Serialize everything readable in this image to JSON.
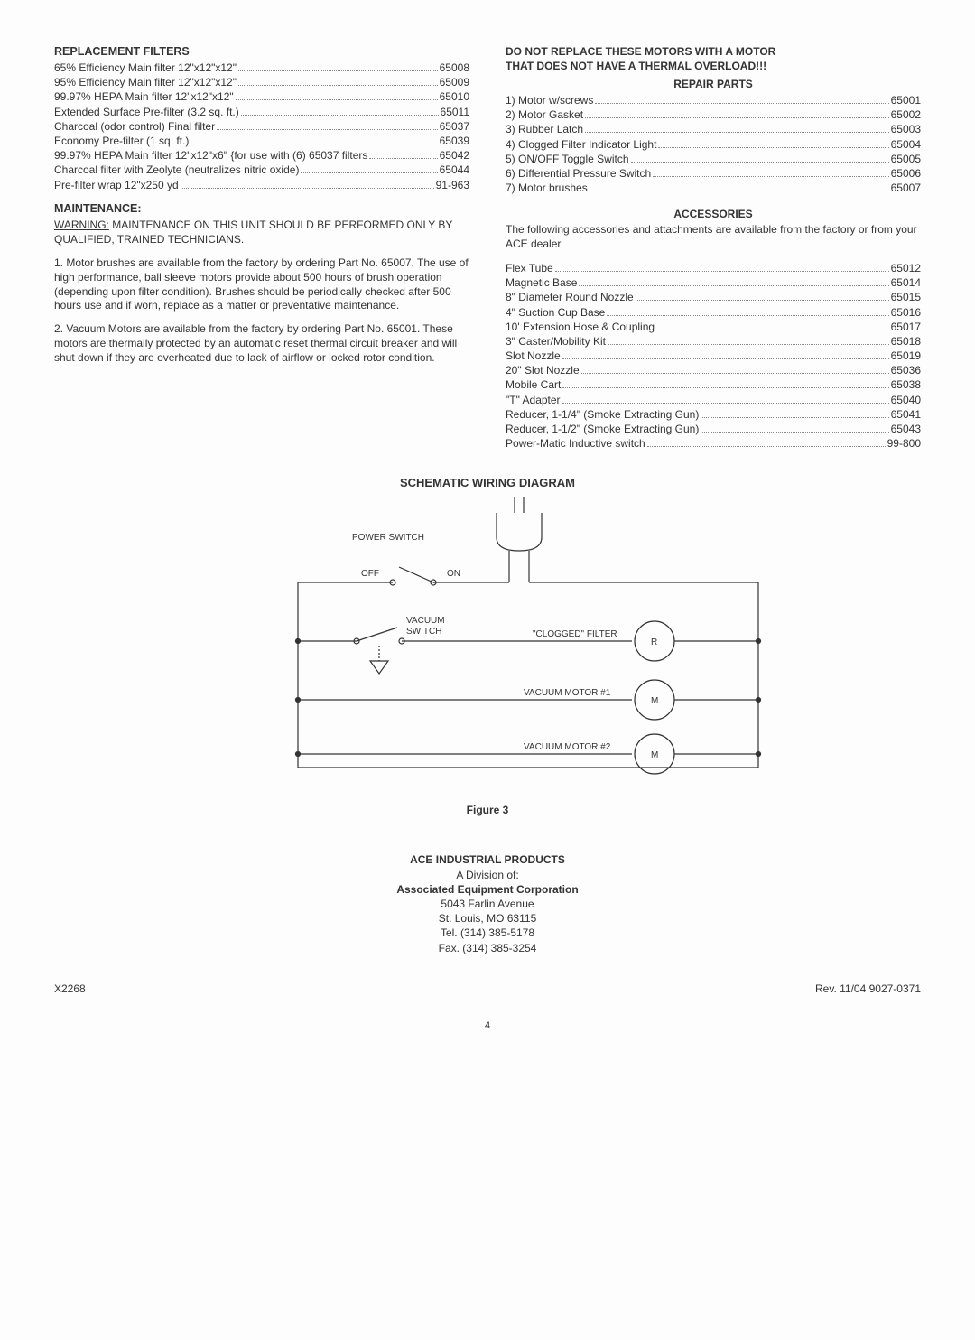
{
  "left": {
    "filtersTitle": "REPLACEMENT FILTERS",
    "filters": [
      {
        "label": "65% Efficiency Main filter 12\"x12\"x12\"",
        "num": "65008"
      },
      {
        "label": "95% Efficiency Main filter 12\"x12\"x12\"",
        "num": "65009"
      },
      {
        "label": "99.97% HEPA Main filter 12\"x12\"x12\"",
        "num": "65010"
      },
      {
        "label": "Extended Surface Pre-filter (3.2 sq. ft.)",
        "num": "65011"
      },
      {
        "label": "Charcoal (odor control) Final filter",
        "num": "65037"
      },
      {
        "label": "Economy Pre-filter (1 sq. ft.)",
        "num": "65039"
      },
      {
        "label": "99.97% HEPA Main filter 12\"x12\"x6\" {for use with (6) 65037 filters",
        "num": "65042"
      },
      {
        "label": "Charcoal filter with Zeolyte (neutralizes nitric oxide)",
        "num": "65044"
      },
      {
        "label": "Pre-filter wrap 12\"x250 yd",
        "num": "91-963"
      }
    ],
    "maintTitle": "MAINTENANCE:",
    "warningLabel": "WARNING:",
    "warningText": " MAINTENANCE ON THIS UNIT SHOULD BE PERFORMED ONLY BY QUALIFIED, TRAINED TECHNICIANS.",
    "p1": "1.    Motor brushes are available from the factory by ordering Part No. 65007.  The use of high performance, ball sleeve motors provide about 500 hours of brush operation (depending upon filter condition). Brushes should be periodically checked after 500 hours use and if worn, replace as a matter or preventative maintenance.",
    "p2": "2.    Vacuum Motors are available from the factory by ordering Part No. 65001. These motors are thermally protected by an automatic reset thermal circuit breaker and will shut down if they are overheated due to lack of airflow or locked rotor condition."
  },
  "right": {
    "motorWarn1": "DO NOT REPLACE THESE MOTORS WITH A MOTOR",
    "motorWarn2": "THAT DOES NOT HAVE A THERMAL OVERLOAD!!!",
    "repairTitle": "REPAIR PARTS",
    "repair": [
      {
        "label": "1) Motor w/screws",
        "num": "65001"
      },
      {
        "label": "2) Motor Gasket",
        "num": "65002"
      },
      {
        "label": "3) Rubber Latch",
        "num": "65003"
      },
      {
        "label": "4) Clogged Filter Indicator Light",
        "num": "65004"
      },
      {
        "label": "5) ON/OFF Toggle Switch",
        "num": "65005"
      },
      {
        "label": "6) Differential Pressure Switch",
        "num": "65006"
      },
      {
        "label": "7) Motor brushes",
        "num": "65007"
      }
    ],
    "accTitle": "ACCESSORIES",
    "accIntro": "The following accessories and attachments are available from the factory or from your ACE dealer.",
    "acc": [
      {
        "label": "Flex Tube",
        "num": "65012"
      },
      {
        "label": "Magnetic Base",
        "num": "65014"
      },
      {
        "label": "8\" Diameter Round Nozzle",
        "num": "65015"
      },
      {
        "label": "4\" Suction Cup Base",
        "num": "65016"
      },
      {
        "label": "10' Extension Hose & Coupling",
        "num": "65017"
      },
      {
        "label": "3\" Caster/Mobility Kit",
        "num": "65018"
      },
      {
        "label": "Slot Nozzle",
        "num": "65019"
      },
      {
        "label": "20\" Slot Nozzle",
        "num": "65036"
      },
      {
        "label": "Mobile Cart",
        "num": "65038"
      },
      {
        "label": "\"T\" Adapter",
        "num": "65040"
      },
      {
        "label": "Reducer, 1-1/4\" (Smoke Extracting Gun)",
        "num": "65041"
      },
      {
        "label": "Reducer, 1-1/2\" (Smoke Extracting Gun)",
        "num": "65043"
      },
      {
        "label": "Power-Matic Inductive switch",
        "num": "99-800"
      }
    ]
  },
  "diagram": {
    "title": "SCHEMATIC WIRING DIAGRAM",
    "powerSwitch": "POWER SWITCH",
    "off": "OFF",
    "on": "ON",
    "vacSwitch1": "VACUUM",
    "vacSwitch2": "SWITCH",
    "clogged": "\"CLOGGED\" FILTER",
    "r": "R",
    "vm1": "VACUUM MOTOR #1",
    "vm2": "VACUUM MOTOR #2",
    "m": "M",
    "caption": "Figure 3"
  },
  "footer": {
    "l1": "ACE INDUSTRIAL PRODUCTS",
    "l2": "A Division of:",
    "l3": "Associated Equipment Corporation",
    "l4": "5043 Farlin Avenue",
    "l5": "St. Louis, MO 63115",
    "l6": "Tel. (314) 385-5178",
    "l7": "Fax. (314) 385-3254",
    "left": "X2268",
    "right": "Rev. 11/04 9027-0371",
    "page": "4"
  },
  "style": {
    "stroke": "#333333",
    "text": "#333333"
  }
}
